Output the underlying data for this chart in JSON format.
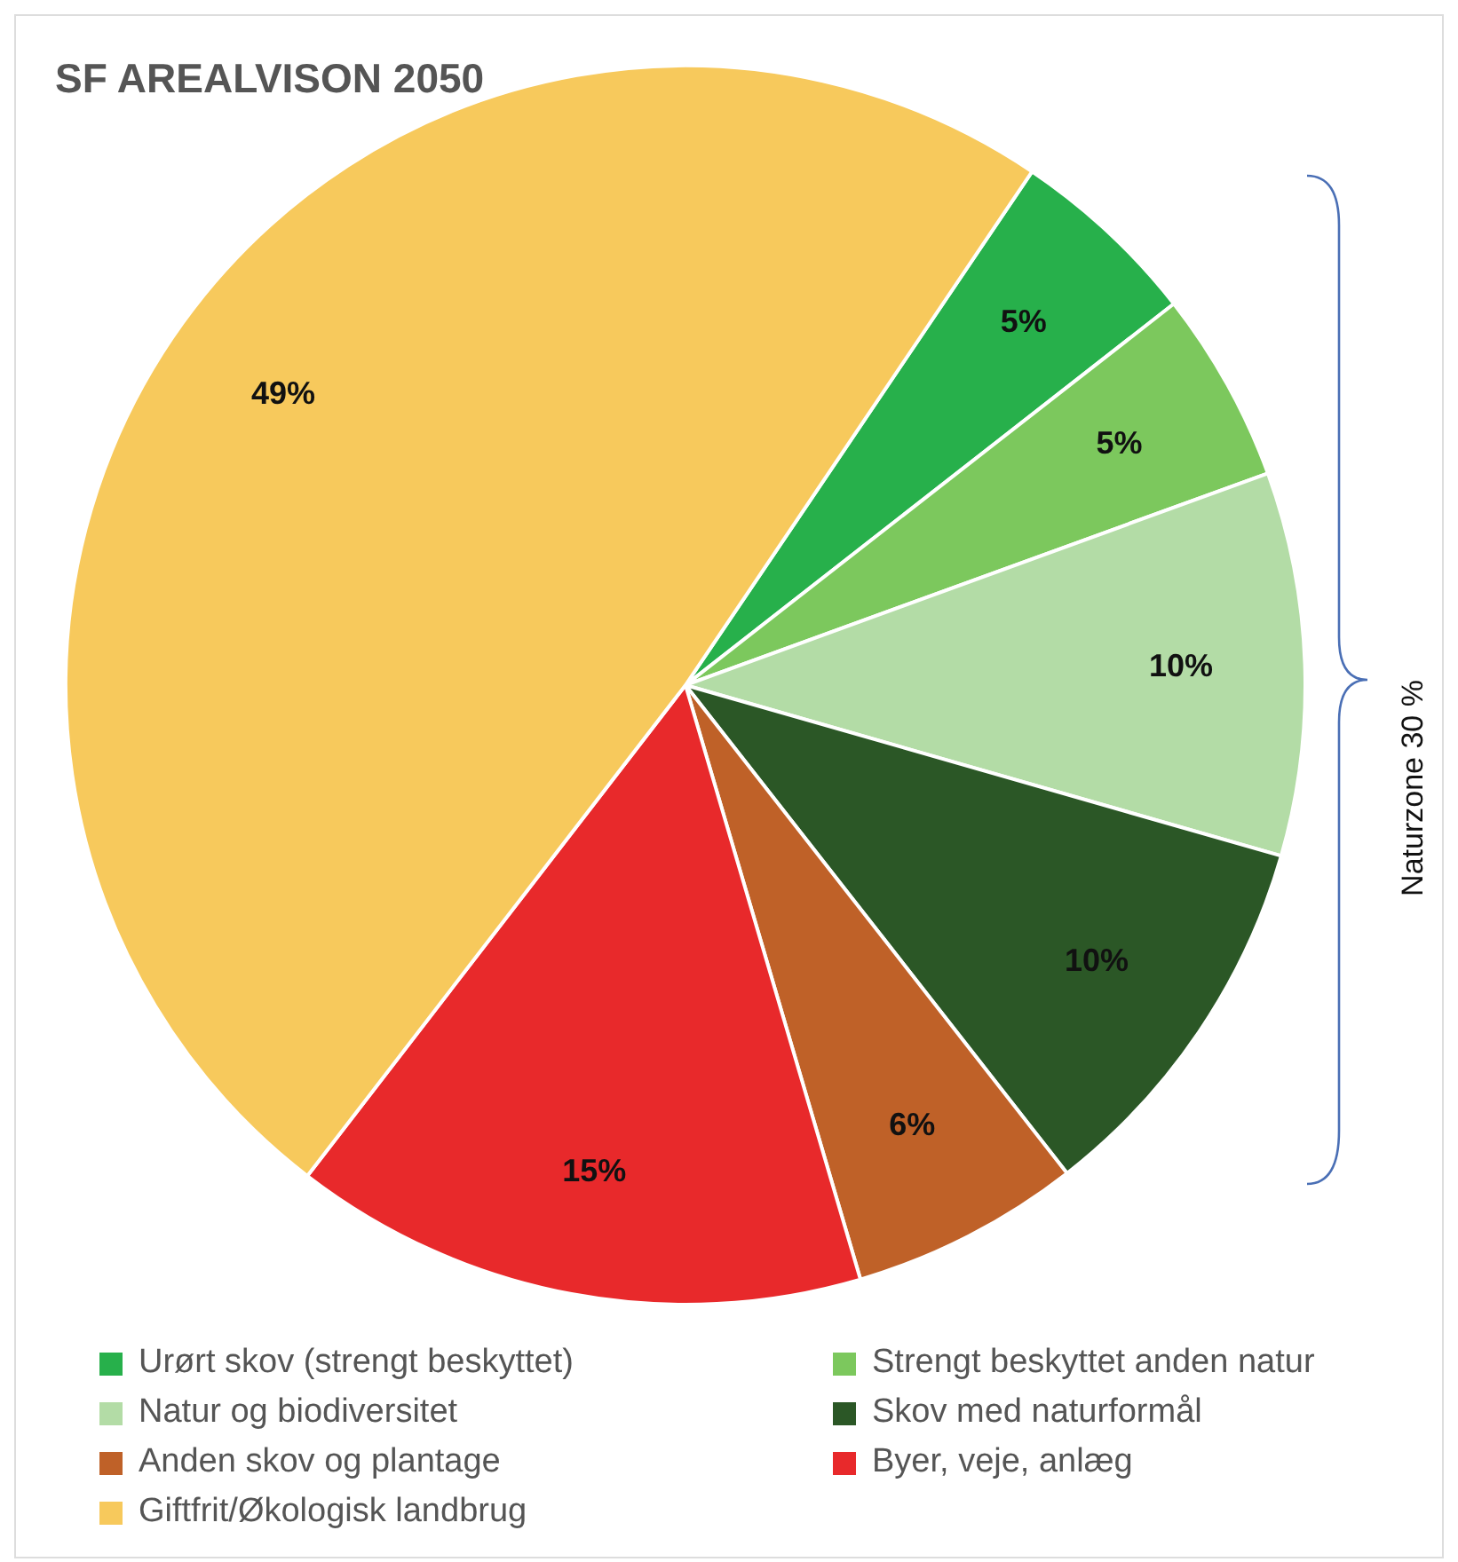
{
  "chart_data": {
    "type": "pie",
    "title": "SF AREALVISON 2050",
    "categories": [
      "Urørt skov (strengt beskyttet)",
      "Strengt beskyttet anden natur",
      "Natur og biodiversitet",
      "Skov med naturformål",
      "Anden skov og plantage",
      "Byer, veje, anlæg",
      "Giftfrit/Økologisk landbrug"
    ],
    "values": [
      5,
      5,
      10,
      10,
      6,
      15,
      49
    ],
    "colors": [
      "#27b04b",
      "#7cc85d",
      "#b3dca6",
      "#2b5726",
      "#bf6128",
      "#e8292b",
      "#f7c95c"
    ],
    "value_labels": [
      "5%",
      "5%",
      "10%",
      "10%",
      "6%",
      "15%",
      "49%"
    ],
    "legend": "bottom",
    "annotations": [
      "Naturzone 30 %"
    ]
  }
}
